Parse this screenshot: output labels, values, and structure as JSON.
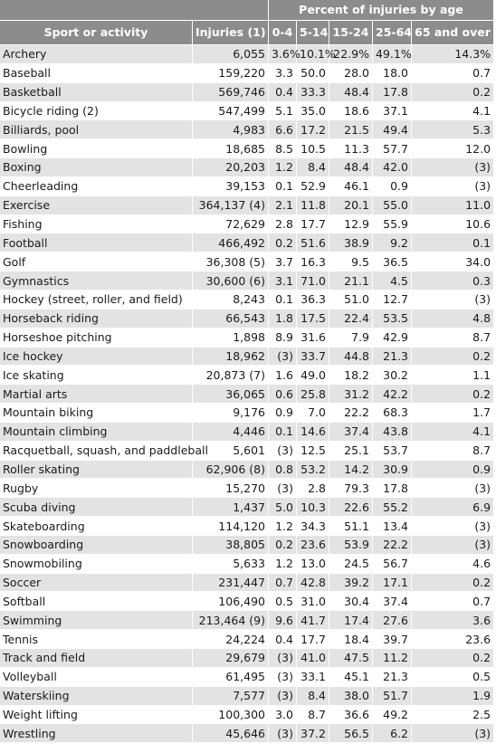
{
  "headers": {
    "group": "Percent of injuries by age",
    "sport": "Sport or activity",
    "injuries": "Injuries (1)",
    "ages": [
      "0-4",
      "5-14",
      "15-24",
      "25-64",
      "65 and over"
    ]
  },
  "rows": [
    {
      "sport": "Archery",
      "injuries": "6,055",
      "a1": "3.6%",
      "a2": "10.1%",
      "a3": "22.9%",
      "a4": "49.1%",
      "a5": "14.3%"
    },
    {
      "sport": "Baseball",
      "injuries": "159,220",
      "a1": "3.3",
      "a2": "50.0",
      "a3": "28.0",
      "a4": "18.0",
      "a5": "0.7"
    },
    {
      "sport": "Basketball",
      "injuries": "569,746",
      "a1": "0.4",
      "a2": "33.3",
      "a3": "48.4",
      "a4": "17.8",
      "a5": "0.2"
    },
    {
      "sport": "Bicycle riding (2)",
      "injuries": "547,499",
      "a1": "5.1",
      "a2": "35.0",
      "a3": "18.6",
      "a4": "37.1",
      "a5": "4.1"
    },
    {
      "sport": "Billiards, pool",
      "injuries": "4,983",
      "a1": "6.6",
      "a2": "17.2",
      "a3": "21.5",
      "a4": "49.4",
      "a5": "5.3"
    },
    {
      "sport": "Bowling",
      "injuries": "18,685",
      "a1": "8.5",
      "a2": "10.5",
      "a3": "11.3",
      "a4": "57.7",
      "a5": "12.0"
    },
    {
      "sport": "Boxing",
      "injuries": "20,203",
      "a1": "1.2",
      "a2": "8.4",
      "a3": "48.4",
      "a4": "42.0",
      "a5": "(3)"
    },
    {
      "sport": "Cheerleading",
      "injuries": "39,153",
      "a1": "0.1",
      "a2": "52.9",
      "a3": "46.1",
      "a4": "0.9",
      "a5": "(3)"
    },
    {
      "sport": "Exercise",
      "injuries": "364,137 (4)",
      "a1": "2.1",
      "a2": "11.8",
      "a3": "20.1",
      "a4": "55.0",
      "a5": "11.0"
    },
    {
      "sport": "Fishing",
      "injuries": "72,629",
      "a1": "2.8",
      "a2": "17.7",
      "a3": "12.9",
      "a4": "55.9",
      "a5": "10.6"
    },
    {
      "sport": "Football",
      "injuries": "466,492",
      "a1": "0.2",
      "a2": "51.6",
      "a3": "38.9",
      "a4": "9.2",
      "a5": "0.1"
    },
    {
      "sport": "Golf",
      "injuries": "36,308 (5)",
      "a1": "3.7",
      "a2": "16.3",
      "a3": "9.5",
      "a4": "36.5",
      "a5": "34.0"
    },
    {
      "sport": "Gymnastics",
      "injuries": "30,600 (6)",
      "a1": "3.1",
      "a2": "71.0",
      "a3": "21.1",
      "a4": "4.5",
      "a5": "0.3"
    },
    {
      "sport": "Hockey (street, roller, and field)",
      "injuries": "8,243",
      "a1": "0.1",
      "a2": "36.3",
      "a3": "51.0",
      "a4": "12.7",
      "a5": "(3)"
    },
    {
      "sport": "Horseback riding",
      "injuries": "66,543",
      "a1": "1.8",
      "a2": "17.5",
      "a3": "22.4",
      "a4": "53.5",
      "a5": "4.8"
    },
    {
      "sport": "Horseshoe pitching",
      "injuries": "1,898",
      "a1": "8.9",
      "a2": "31.6",
      "a3": "7.9",
      "a4": "42.9",
      "a5": "8.7"
    },
    {
      "sport": "Ice hockey",
      "injuries": "18,962",
      "a1": "(3)",
      "a2": "33.7",
      "a3": "44.8",
      "a4": "21.3",
      "a5": "0.2"
    },
    {
      "sport": "Ice skating",
      "injuries": "20,873 (7)",
      "a1": "1.6",
      "a2": "49.0",
      "a3": "18.2",
      "a4": "30.2",
      "a5": "1.1"
    },
    {
      "sport": "Martial arts",
      "injuries": "36,065",
      "a1": "0.6",
      "a2": "25.8",
      "a3": "31.2",
      "a4": "42.2",
      "a5": "0.2"
    },
    {
      "sport": "Mountain biking",
      "injuries": "9,176",
      "a1": "0.9",
      "a2": "7.0",
      "a3": "22.2",
      "a4": "68.3",
      "a5": "1.7"
    },
    {
      "sport": "Mountain climbing",
      "injuries": "4,446",
      "a1": "0.1",
      "a2": "14.6",
      "a3": "37.4",
      "a4": "43.8",
      "a5": "4.1"
    },
    {
      "sport": "Racquetball, squash, and paddleball",
      "injuries": "5,601",
      "a1": "(3)",
      "a2": "12.5",
      "a3": "25.1",
      "a4": "53.7",
      "a5": "8.7"
    },
    {
      "sport": "Roller skating",
      "injuries": "62,906 (8)",
      "a1": "0.8",
      "a2": "53.2",
      "a3": "14.2",
      "a4": "30.9",
      "a5": "0.9"
    },
    {
      "sport": "Rugby",
      "injuries": "15,270",
      "a1": "(3)",
      "a2": "2.8",
      "a3": "79.3",
      "a4": "17.8",
      "a5": "(3)"
    },
    {
      "sport": "Scuba diving",
      "injuries": "1,437",
      "a1": "5.0",
      "a2": "10.3",
      "a3": "22.6",
      "a4": "55.2",
      "a5": "6.9"
    },
    {
      "sport": "Skateboarding",
      "injuries": "114,120",
      "a1": "1.2",
      "a2": "34.3",
      "a3": "51.1",
      "a4": "13.4",
      "a5": "(3)"
    },
    {
      "sport": "Snowboarding",
      "injuries": "38,805",
      "a1": "0.2",
      "a2": "23.6",
      "a3": "53.9",
      "a4": "22.2",
      "a5": "(3)"
    },
    {
      "sport": "Snowmobiling",
      "injuries": "5,633",
      "a1": "1.2",
      "a2": "13.0",
      "a3": "24.5",
      "a4": "56.7",
      "a5": "4.6"
    },
    {
      "sport": "Soccer",
      "injuries": "231,447",
      "a1": "0.7",
      "a2": "42.8",
      "a3": "39.2",
      "a4": "17.1",
      "a5": "0.2"
    },
    {
      "sport": "Softball",
      "injuries": "106,490",
      "a1": "0.5",
      "a2": "31.0",
      "a3": "30.4",
      "a4": "37.4",
      "a5": "0.7"
    },
    {
      "sport": "Swimming",
      "injuries": "213,464 (9)",
      "a1": "9.6",
      "a2": "41.7",
      "a3": "17.4",
      "a4": "27.6",
      "a5": "3.6"
    },
    {
      "sport": "Tennis",
      "injuries": "24,224",
      "a1": "0.4",
      "a2": "17.7",
      "a3": "18.4",
      "a4": "39.7",
      "a5": "23.6"
    },
    {
      "sport": "Track and field",
      "injuries": "29,679",
      "a1": "(3)",
      "a2": "41.0",
      "a3": "47.5",
      "a4": "11.2",
      "a5": "0.2"
    },
    {
      "sport": "Volleyball",
      "injuries": "61,495",
      "a1": "(3)",
      "a2": "33.1",
      "a3": "45.1",
      "a4": "21.3",
      "a5": "0.5"
    },
    {
      "sport": "Waterskiing",
      "injuries": "7,577",
      "a1": "(3)",
      "a2": "8.4",
      "a3": "38.0",
      "a4": "51.7",
      "a5": "1.9"
    },
    {
      "sport": "Weight lifting",
      "injuries": "100,300",
      "a1": "3.0",
      "a2": "8.7",
      "a3": "36.6",
      "a4": "49.2",
      "a5": "2.5"
    },
    {
      "sport": "Wrestling",
      "injuries": "45,646",
      "a1": "(3)",
      "a2": "37.2",
      "a3": "56.5",
      "a4": "6.2",
      "a5": "(3)"
    }
  ]
}
